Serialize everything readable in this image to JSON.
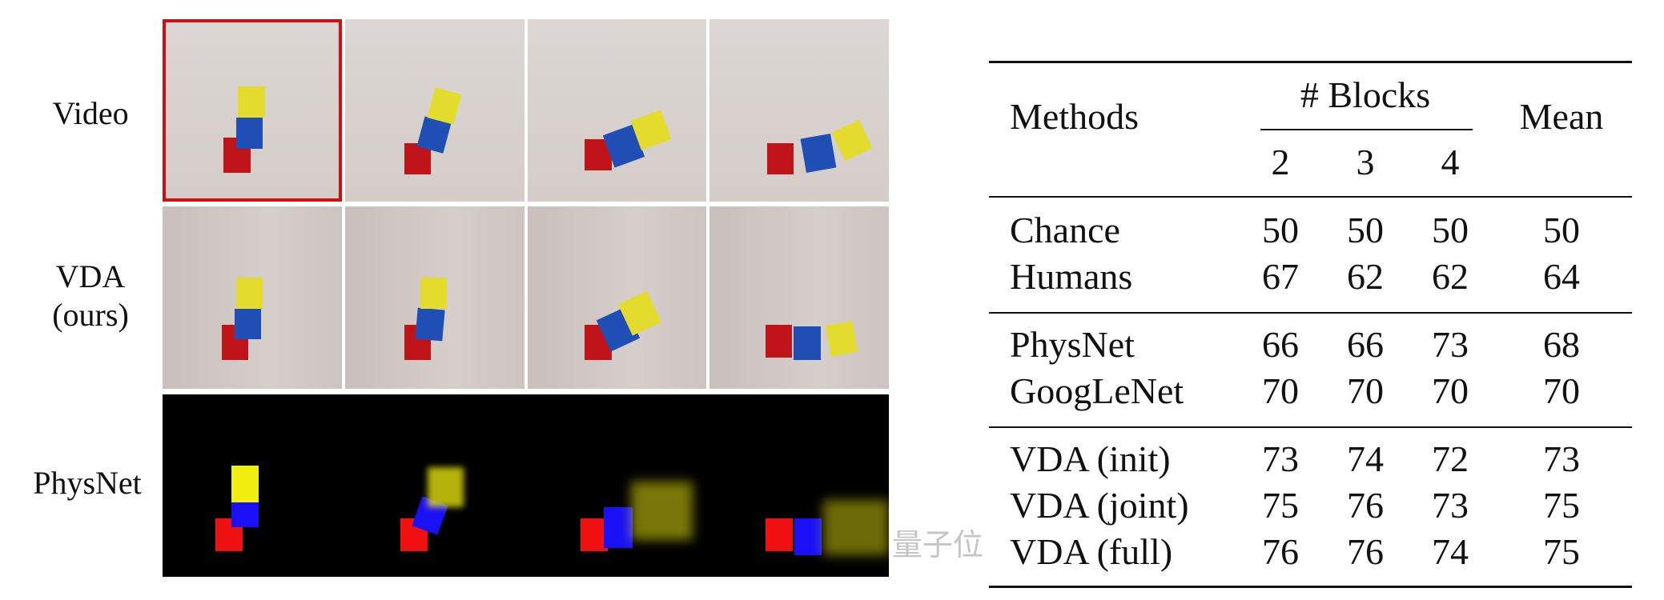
{
  "figure": {
    "row_labels": {
      "video": "Video",
      "vda_line1": "VDA",
      "vda_line2": "(ours)",
      "physnet": "PhysNet"
    },
    "frames_per_row": 4,
    "selected_frame": "Video row, frame 1",
    "highlight_color": "#d10f0f",
    "block_colors": {
      "red": "#c0141b",
      "blue": "#1f4fb5",
      "yellow": "#e4dc2c"
    }
  },
  "table": {
    "headers": {
      "methods": "Methods",
      "blocks_group": "# Blocks",
      "blocks": [
        "2",
        "3",
        "4"
      ],
      "mean": "Mean"
    },
    "groups": [
      [
        {
          "method": "Chance",
          "values": [
            "50",
            "50",
            "50"
          ],
          "mean": "50"
        },
        {
          "method": "Humans",
          "values": [
            "67",
            "62",
            "62"
          ],
          "mean": "64"
        }
      ],
      [
        {
          "method": "PhysNet",
          "values": [
            "66",
            "66",
            "73"
          ],
          "mean": "68"
        },
        {
          "method": "GoogLeNet",
          "values": [
            "70",
            "70",
            "70"
          ],
          "mean": "70"
        }
      ],
      [
        {
          "method": "VDA (init)",
          "values": [
            "73",
            "74",
            "72"
          ],
          "mean": "73"
        },
        {
          "method": "VDA (joint)",
          "values": [
            "75",
            "76",
            "73"
          ],
          "mean": "75"
        },
        {
          "method": "VDA (full)",
          "values": [
            "76",
            "76",
            "74"
          ],
          "mean": "75"
        }
      ]
    ]
  },
  "watermark": "量子位"
}
